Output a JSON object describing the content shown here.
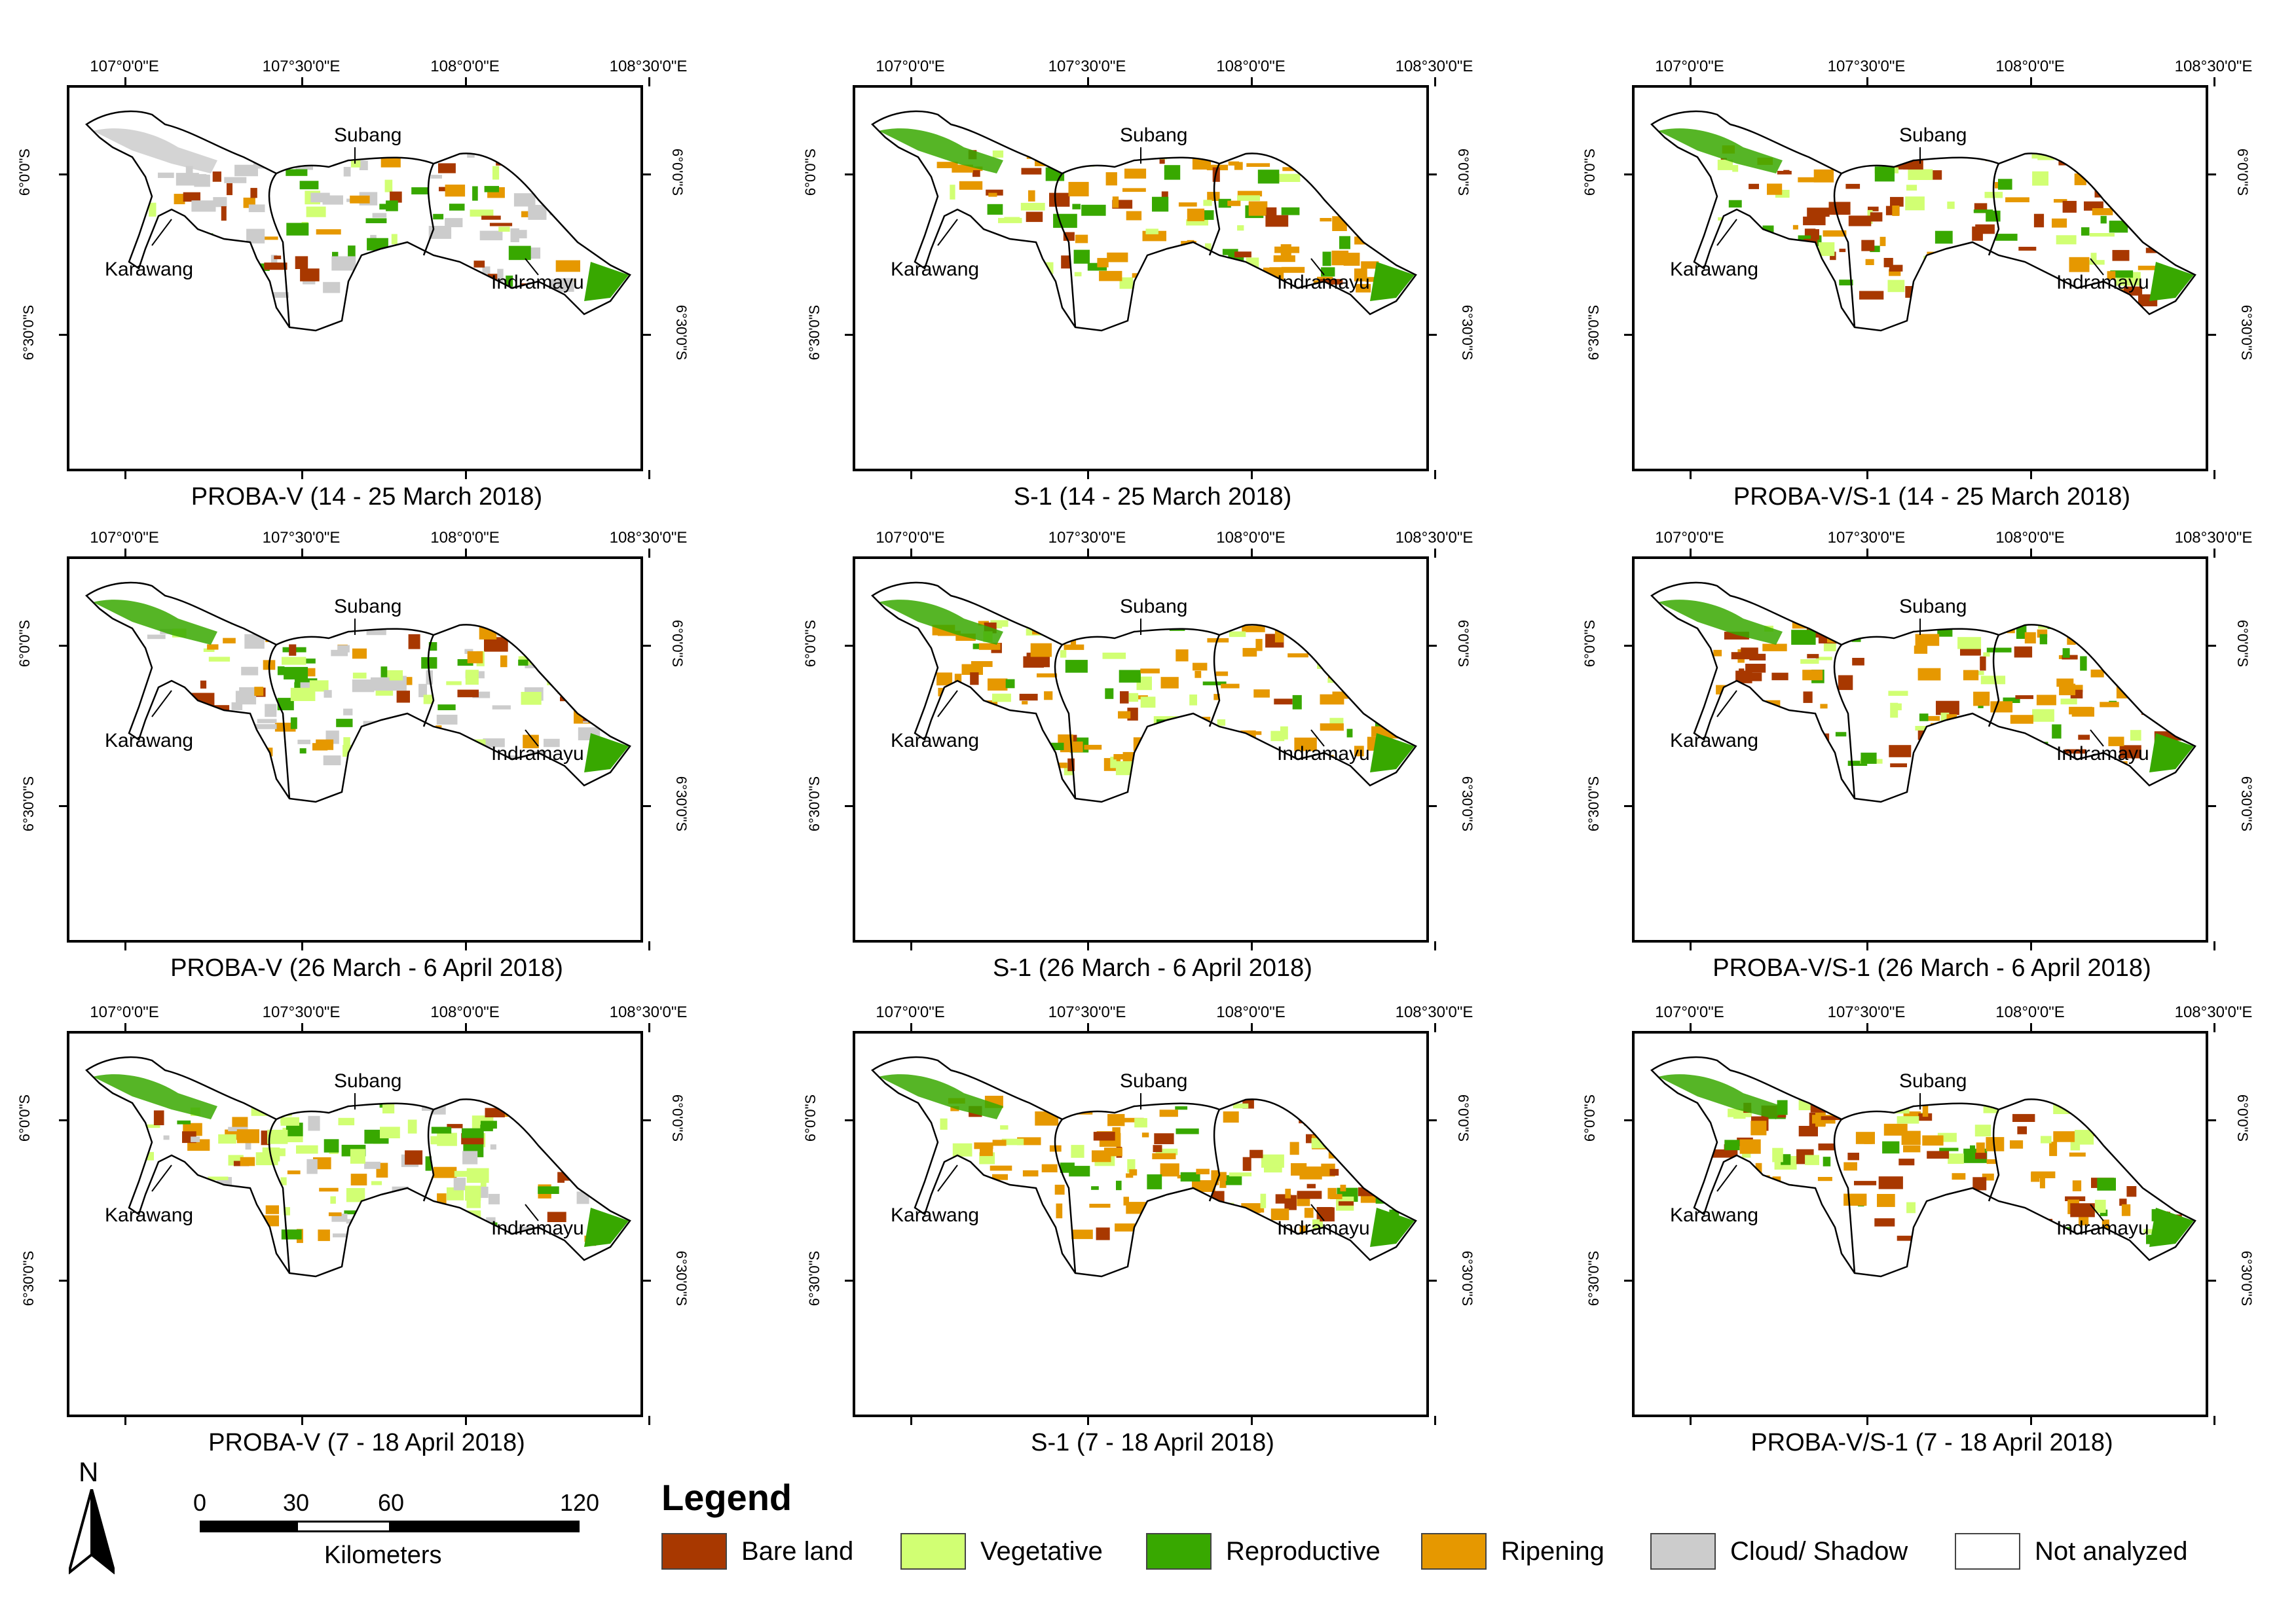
{
  "lon_labels": [
    "107°0'0\"E",
    "107°30'0\"E",
    "108°0'0\"E",
    "108°30'0\"E"
  ],
  "lat_labels": [
    "6°0'0\"S",
    "6°30'0\"S"
  ],
  "districts": [
    "Subang",
    "Karawang",
    "Indramayu"
  ],
  "panels": [
    {
      "caption": "PROBA-V (14 - 25 March 2018)"
    },
    {
      "caption": "S-1 (14 - 25 March 2018)"
    },
    {
      "caption": "PROBA-V/S-1 (14 - 25 March 2018)"
    },
    {
      "caption": "PROBA-V (26 March - 6 April 2018)"
    },
    {
      "caption": "S-1 (26 March - 6 April 2018)"
    },
    {
      "caption": "PROBA-V/S-1 (26 March - 6 April 2018)"
    },
    {
      "caption": "PROBA-V (7 - 18 April 2018)"
    },
    {
      "caption": "S-1 (7 - 18 April 2018)"
    },
    {
      "caption": "PROBA-V/S-1 (7 - 18 April 2018)"
    }
  ],
  "legend": {
    "title": "Legend",
    "items": [
      {
        "label": "Bare land",
        "color": "#a83800"
      },
      {
        "label": "Vegetative",
        "color": "#d1ff73"
      },
      {
        "label": "Reproductive",
        "color": "#38a800"
      },
      {
        "label": "Ripening",
        "color": "#e69800"
      },
      {
        "label": "Cloud/ Shadow",
        "color": "#cccccc"
      },
      {
        "label": "Not analyzed",
        "color": "#ffffff"
      }
    ]
  },
  "scale_bar": {
    "labels": [
      "0",
      "30",
      "60",
      "120"
    ],
    "unit": "Kilometers"
  },
  "north_arrow": {
    "label": "N"
  }
}
